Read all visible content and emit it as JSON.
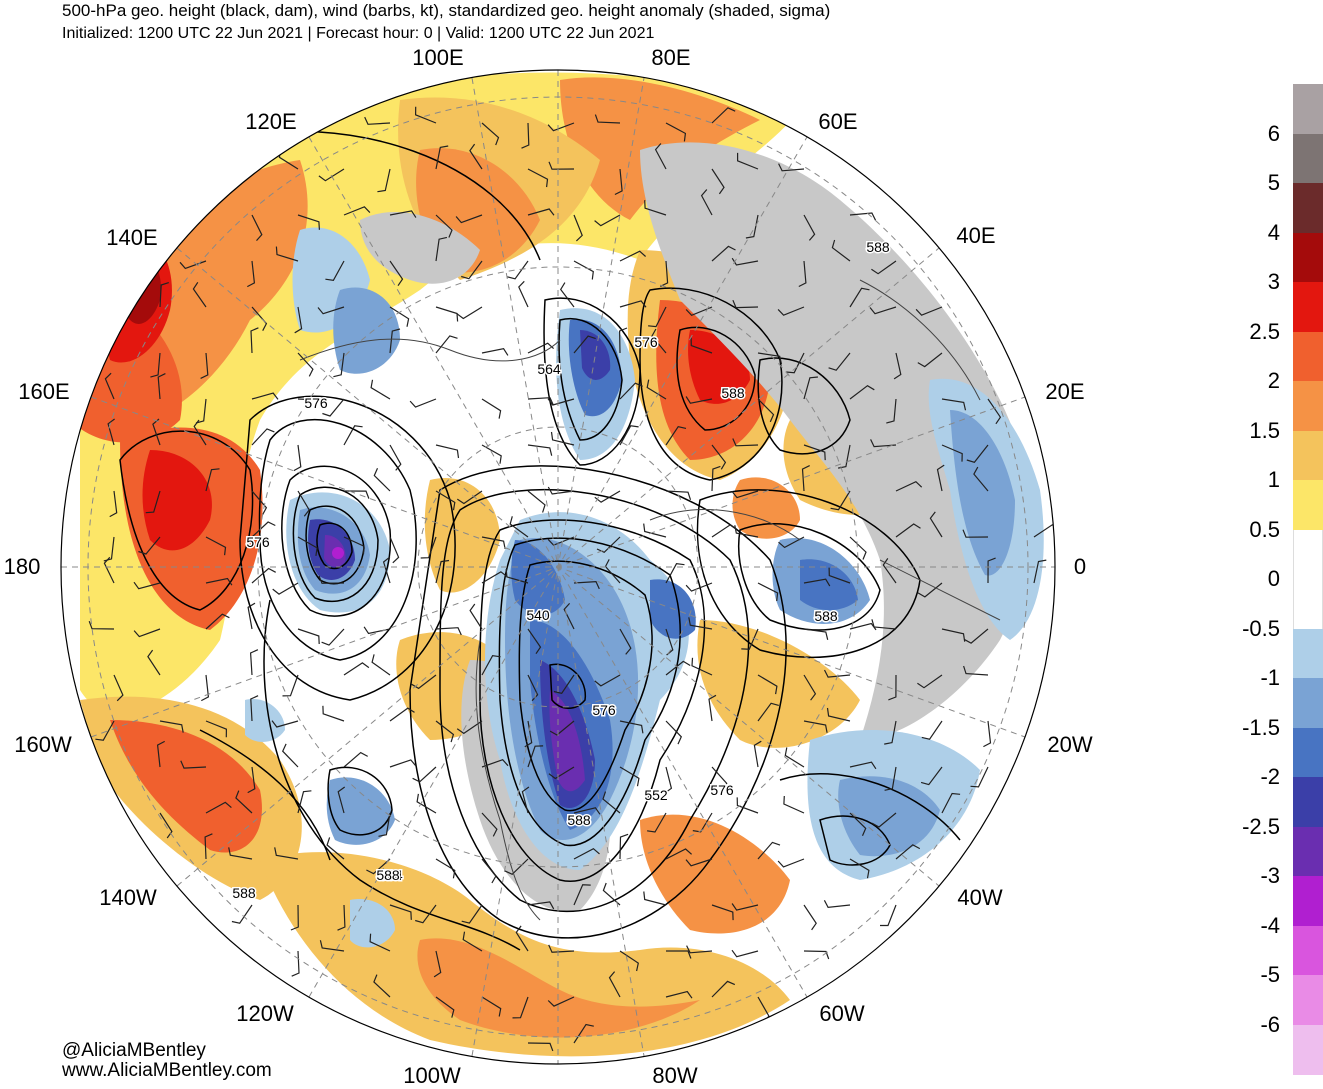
{
  "header": {
    "title": "500-hPa geo. height (black, dam), wind (barbs, kt), standardized geo. height anomaly (shaded, sigma)",
    "subtitle": "Initialized: 1200 UTC 22 Jun 2021 | Forecast hour: 0 | Valid: 1200 UTC 22 Jun 2021"
  },
  "map": {
    "projection": "north-polar-stereographic",
    "longitude_labels": [
      "100E",
      "80E",
      "120E",
      "60E",
      "140E",
      "40E",
      "160E",
      "20E",
      "180",
      "0",
      "160W",
      "20W",
      "140W",
      "40W",
      "120W",
      "60W",
      "100W",
      "80W"
    ],
    "contour_labels": [
      "588",
      "576",
      "564",
      "576",
      "588",
      "576",
      "588",
      "540",
      "576",
      "552",
      "576",
      "588",
      "564",
      "588",
      "588"
    ],
    "anomaly_features": [
      {
        "region": "Kamchatka / Bering Sea",
        "sign": "positive",
        "max_sigma": 4
      },
      {
        "region": "Western Russia",
        "sign": "positive",
        "max_sigma": 3
      },
      {
        "region": "Siberia (Lena)",
        "sign": "negative",
        "max_sigma": -3
      },
      {
        "region": "East Siberian Sea",
        "sign": "negative",
        "max_sigma": -4
      },
      {
        "region": "Hudson Bay / Canada",
        "sign": "negative",
        "max_sigma": -3
      },
      {
        "region": "Eastern Pacific",
        "sign": "positive",
        "max_sigma": 2.5
      },
      {
        "region": "Scandinavia / Norway coast",
        "sign": "negative",
        "max_sigma": -1.5
      },
      {
        "region": "North Atlantic",
        "sign": "negative",
        "max_sigma": -1.5
      }
    ]
  },
  "colorbar": {
    "labels": [
      "6",
      "5",
      "4",
      "3",
      "2.5",
      "2",
      "1.5",
      "1",
      "0.5",
      "0",
      "-0.5",
      "-1",
      "-1.5",
      "-2",
      "-2.5",
      "-3",
      "-4",
      "-5",
      "-6"
    ],
    "colors": [
      "#a9a1a3",
      "#7d7473",
      "#6b2b2b",
      "#a40b0b",
      "#e3170f",
      "#f0602e",
      "#f59245",
      "#f4c35c",
      "#fce668",
      "#ffffff",
      "#ffffff",
      "#aecfe8",
      "#7aa3d4",
      "#4874c2",
      "#3b3fa8",
      "#6a2eb0",
      "#b01fd0",
      "#d955de",
      "#e98be6",
      "#eebeee"
    ]
  },
  "credits": {
    "handle": "@AliciaMBentley",
    "website": "www.AliciaMBentley.com"
  }
}
